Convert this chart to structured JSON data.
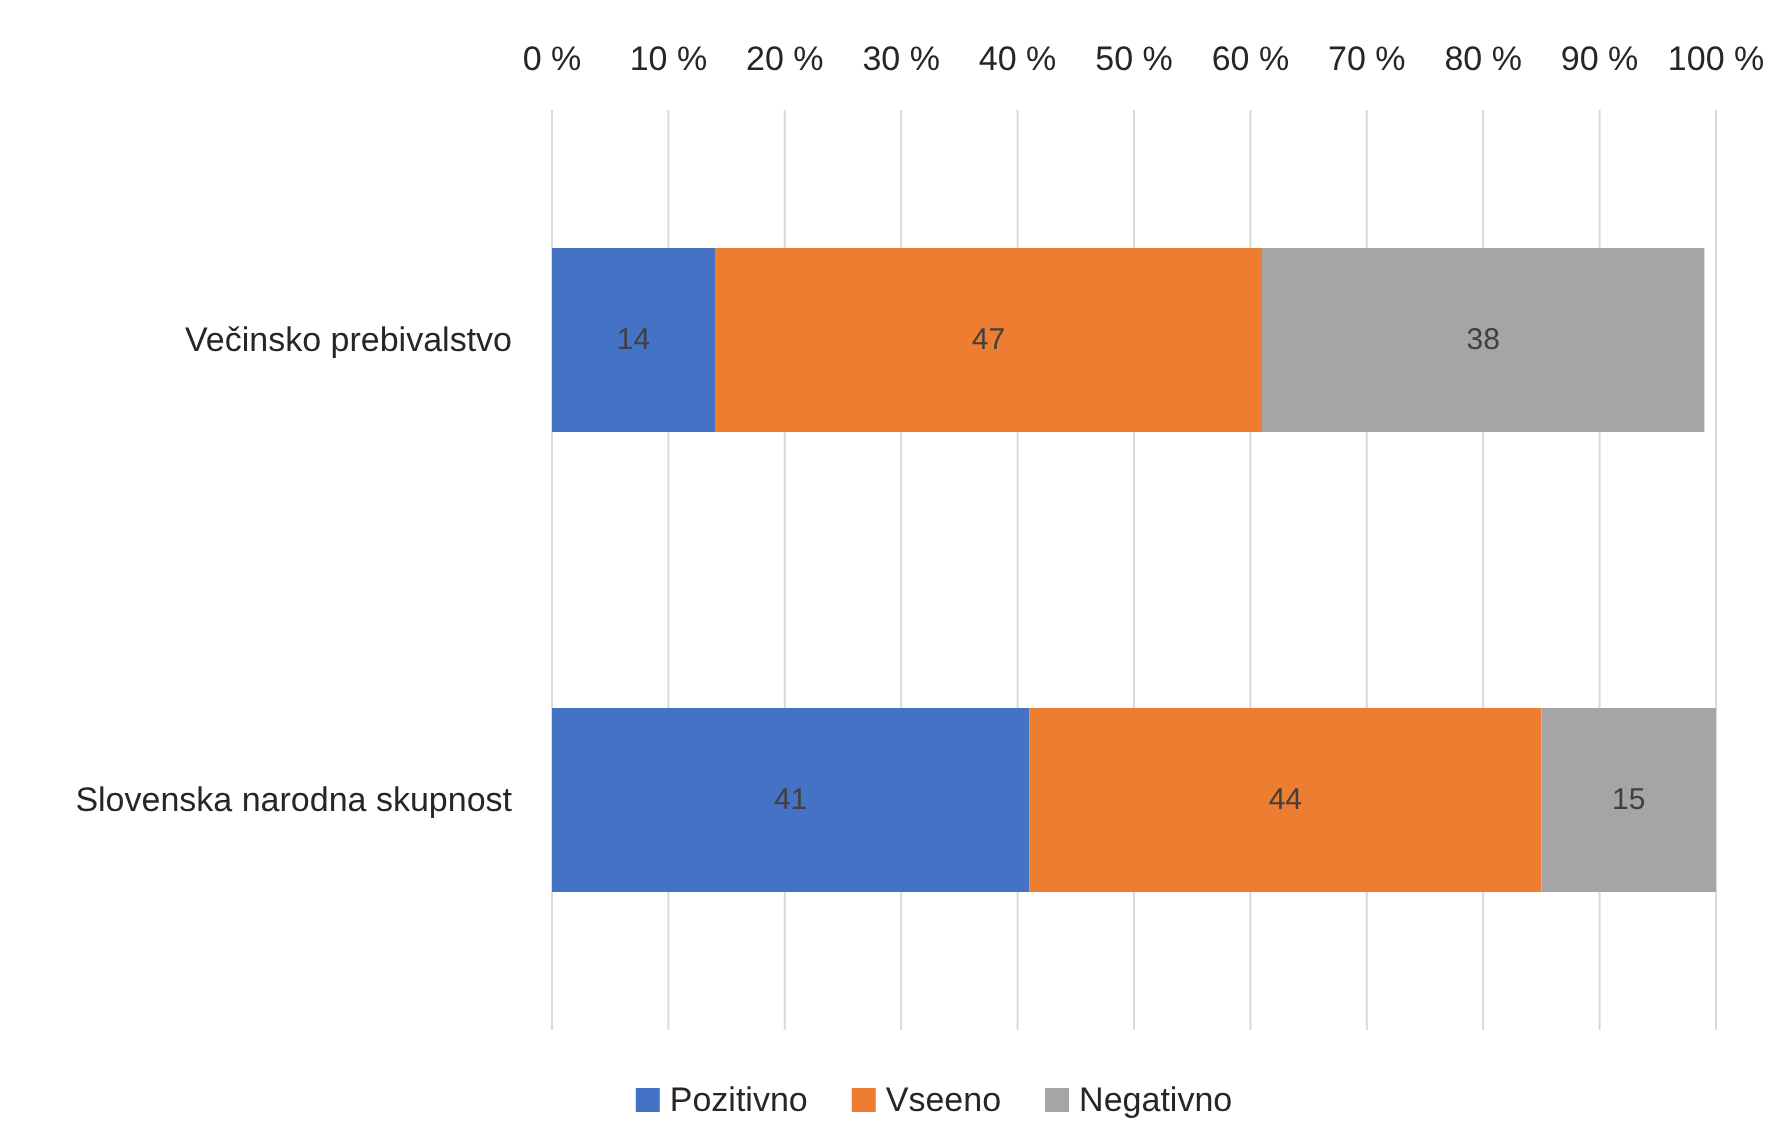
{
  "chart_data": {
    "type": "bar",
    "orientation": "horizontal",
    "stacked": true,
    "categories": [
      "Večinsko prebivalstvo",
      "Slovenska narodna skupnost"
    ],
    "series": [
      {
        "name": "Pozitivno",
        "color": "#4472c4",
        "values": [
          14,
          41
        ]
      },
      {
        "name": "Vseeno",
        "color": "#ed7d31",
        "values": [
          47,
          44
        ]
      },
      {
        "name": "Negativno",
        "color": "#a5a5a5",
        "values": [
          38,
          15
        ]
      }
    ],
    "xlim": [
      0,
      100
    ],
    "xticks": [
      {
        "value": 0,
        "label": "0 %"
      },
      {
        "value": 10,
        "label": "10 %"
      },
      {
        "value": 20,
        "label": "20 %"
      },
      {
        "value": 30,
        "label": "30 %"
      },
      {
        "value": 40,
        "label": "40 %"
      },
      {
        "value": 50,
        "label": "50 %"
      },
      {
        "value": 60,
        "label": "60 %"
      },
      {
        "value": 70,
        "label": "70 %"
      },
      {
        "value": 80,
        "label": "80 %"
      },
      {
        "value": 90,
        "label": "90 %"
      },
      {
        "value": 100,
        "label": "100 %"
      }
    ],
    "grid": "x",
    "legend": "bottom",
    "data_labels": true
  }
}
